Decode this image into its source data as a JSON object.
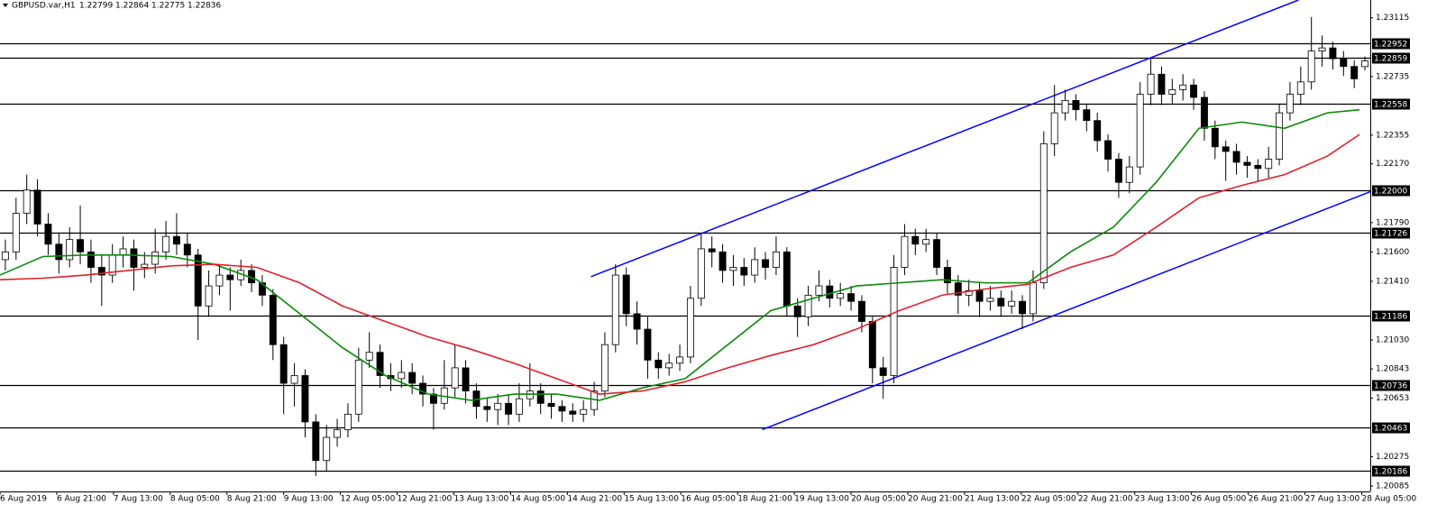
{
  "chart_data": {
    "type": "candlestick",
    "title": "GBPUSD.var,H1",
    "header_values": [
      1.22799,
      1.22864,
      1.22775,
      1.22836
    ],
    "xlim": [
      0,
      128
    ],
    "ylim": [
      1.2005,
      1.2323
    ],
    "xticks": [
      {
        "value": 0,
        "label": "6 Aug 2019"
      },
      {
        "value": 5.3,
        "label": "6 Aug 21:00"
      },
      {
        "value": 10.6,
        "label": "7 Aug 13:00"
      },
      {
        "value": 15.9,
        "label": "8 Aug 05:00"
      },
      {
        "value": 21.2,
        "label": "8 Aug 21:00"
      },
      {
        "value": 26.5,
        "label": "9 Aug 13:00"
      },
      {
        "value": 31.8,
        "label": "12 Aug 05:00"
      },
      {
        "value": 37.1,
        "label": "12 Aug 21:00"
      },
      {
        "value": 42.4,
        "label": "13 Aug 13:00"
      },
      {
        "value": 47.7,
        "label": "14 Aug 05:00"
      },
      {
        "value": 53.0,
        "label": "14 Aug 21:00"
      },
      {
        "value": 58.3,
        "label": "15 Aug 13:00"
      },
      {
        "value": 63.6,
        "label": "16 Aug 05:00"
      },
      {
        "value": 68.9,
        "label": "18 Aug 21:00"
      },
      {
        "value": 74.2,
        "label": "19 Aug 13:00"
      },
      {
        "value": 79.5,
        "label": "20 Aug 05:00"
      },
      {
        "value": 84.8,
        "label": "20 Aug 21:00"
      },
      {
        "value": 90.1,
        "label": "21 Aug 13:00"
      },
      {
        "value": 95.4,
        "label": "22 Aug 05:00"
      },
      {
        "value": 100.7,
        "label": "22 Aug 21:00"
      },
      {
        "value": 106.0,
        "label": "23 Aug 13:00"
      },
      {
        "value": 111.3,
        "label": "26 Aug 05:00"
      },
      {
        "value": 116.6,
        "label": "26 Aug 21:00"
      },
      {
        "value": 121.9,
        "label": "27 Aug 13:00"
      },
      {
        "value": 127.2,
        "label": "28 Aug 05:00"
      }
    ],
    "yticks": [
      1.23115,
      1.22735,
      1.22355,
      {
        "value": 1.2217,
        "label": "1.22170"
      },
      {
        "value": 1.2179,
        "label": "1.21790"
      },
      {
        "value": 1.216,
        "label": "1.21600"
      },
      {
        "value": 1.2141,
        "label": "1.21410"
      },
      {
        "value": 1.2103,
        "label": "1.21030"
      },
      1.20843,
      1.20653,
      1.20275,
      1.20085
    ],
    "levels": [
      1.22952,
      1.22859,
      1.22558,
      {
        "value": 1.22,
        "label": "1.22000"
      },
      1.21726,
      1.21186,
      1.20736,
      1.20463,
      1.20186
    ],
    "open": [
      1.2155,
      1.216,
      1.2185,
      1.22,
      1.2178,
      1.2165,
      1.2155,
      1.2168,
      1.216,
      1.215,
      1.2145,
      1.2158,
      1.2162,
      1.215,
      1.2152,
      1.216,
      1.217,
      1.2165,
      1.2158,
      1.2125,
      1.2138,
      1.2145,
      1.2142,
      1.2148,
      1.214,
      1.2132,
      1.21,
      1.2075,
      1.208,
      1.205,
      1.2025,
      1.204,
      1.2045,
      1.2055,
      1.209,
      1.2095,
      1.208,
      1.2078,
      1.2082,
      1.2075,
      1.2068,
      1.2062,
      1.2072,
      1.2085,
      1.207,
      1.206,
      1.2058,
      1.2062,
      1.2055,
      1.2065,
      1.207,
      1.2062,
      1.206,
      1.2057,
      1.2055,
      1.2058,
      1.207,
      1.21,
      1.2145,
      1.212,
      1.211,
      1.209,
      1.2085,
      1.2088,
      1.2092,
      1.213,
      1.2162,
      1.216,
      1.2148,
      1.215,
      1.2145,
      1.2155,
      1.215,
      1.216,
      1.2125,
      1.2118,
      1.2132,
      1.2138,
      1.213,
      1.2133,
      1.2128,
      1.2115,
      1.2085,
      1.208,
      1.215,
      1.217,
      1.2165,
      1.2168,
      1.215,
      1.214,
      1.2132,
      1.2135,
      1.2128,
      1.213,
      1.2125,
      1.2128,
      1.212,
      1.214,
      1.223,
      1.225,
      1.2258,
      1.2252,
      1.2245,
      1.2232,
      1.222,
      1.2205,
      1.2215,
      1.2262,
      1.2275,
      1.2262,
      1.2265,
      1.2268,
      1.226,
      1.224,
      1.2228,
      1.2225,
      1.2218,
      1.2216,
      1.2214,
      1.222,
      1.225,
      1.2262,
      1.227,
      1.229,
      1.2292,
      1.2285,
      1.228,
      1.22799
    ],
    "high": [
      1.2168,
      1.2195,
      1.221,
      1.2207,
      1.2185,
      1.2172,
      1.2176,
      1.219,
      1.2168,
      1.2158,
      1.2165,
      1.217,
      1.2168,
      1.216,
      1.2175,
      1.218,
      1.2185,
      1.2172,
      1.2162,
      1.2148,
      1.2152,
      1.215,
      1.2155,
      1.2152,
      1.2145,
      1.2136,
      1.2105,
      1.2088,
      1.2084,
      1.2055,
      1.2048,
      1.2052,
      1.2062,
      1.2098,
      1.2108,
      1.21,
      1.2088,
      1.209,
      1.2088,
      1.208,
      1.2072,
      1.209,
      1.21,
      1.209,
      1.2075,
      1.2066,
      1.2068,
      1.2068,
      1.2075,
      1.2088,
      1.2075,
      1.2068,
      1.2064,
      1.2062,
      1.2064,
      1.2076,
      1.2108,
      1.2152,
      1.215,
      1.2128,
      1.2118,
      1.2095,
      1.2094,
      1.21,
      1.2138,
      1.2172,
      1.217,
      1.2165,
      1.2158,
      1.2156,
      1.2163,
      1.216,
      1.217,
      1.2163,
      1.213,
      1.2138,
      1.2148,
      1.2142,
      1.214,
      1.2138,
      1.2132,
      1.2118,
      1.2092,
      1.2158,
      1.2178,
      1.2175,
      1.2175,
      1.2172,
      1.2155,
      1.2145,
      1.2142,
      1.214,
      1.2138,
      1.2135,
      1.2135,
      1.2132,
      1.2148,
      1.2238,
      1.2268,
      1.2265,
      1.2262,
      1.2256,
      1.225,
      1.2236,
      1.2224,
      1.2222,
      1.227,
      1.2285,
      1.228,
      1.2272,
      1.2275,
      1.2272,
      1.2264,
      1.2245,
      1.2232,
      1.223,
      1.2222,
      1.222,
      1.2228,
      1.2256,
      1.227,
      1.228,
      1.2312,
      1.23,
      1.2296,
      1.229,
      1.2284,
      1.22864
    ],
    "low": [
      1.2148,
      1.2155,
      1.2178,
      1.217,
      1.2158,
      1.2146,
      1.215,
      1.2152,
      1.214,
      1.2125,
      1.214,
      1.215,
      1.2135,
      1.2143,
      1.2146,
      1.2155,
      1.2158,
      1.215,
      1.2103,
      1.2118,
      1.2132,
      1.2122,
      1.2138,
      1.2134,
      1.2125,
      1.209,
      1.2055,
      1.206,
      1.204,
      1.2015,
      1.2018,
      1.2034,
      1.204,
      1.205,
      1.2085,
      1.2072,
      1.207,
      1.2072,
      1.2068,
      1.206,
      1.2045,
      1.2058,
      1.2066,
      1.2062,
      1.2052,
      1.205,
      1.2048,
      1.2048,
      1.205,
      1.206,
      1.2055,
      1.2052,
      1.205,
      1.205,
      1.205,
      1.2054,
      1.2066,
      1.2095,
      1.2112,
      1.21,
      1.2078,
      1.2078,
      1.208,
      1.2083,
      1.2088,
      1.2125,
      1.215,
      1.214,
      1.2138,
      1.2138,
      1.214,
      1.2142,
      1.2145,
      1.2118,
      1.2105,
      1.2112,
      1.2128,
      1.2124,
      1.2125,
      1.2122,
      1.2108,
      1.2075,
      1.2065,
      1.2075,
      1.2145,
      1.2158,
      1.216,
      1.2145,
      1.2133,
      1.212,
      1.2125,
      1.2118,
      1.2122,
      1.2118,
      1.212,
      1.211,
      1.2115,
      1.2136,
      1.2222,
      1.2245,
      1.2245,
      1.2238,
      1.2225,
      1.2212,
      1.2195,
      1.2198,
      1.221,
      1.2255,
      1.2255,
      1.2256,
      1.2258,
      1.2252,
      1.2232,
      1.222,
      1.2206,
      1.221,
      1.2208,
      1.2206,
      1.2208,
      1.2216,
      1.2245,
      1.2255,
      1.2265,
      1.228,
      1.2278,
      1.2274,
      1.2266,
      1.22775
    ],
    "close": [
      1.216,
      1.2185,
      1.22,
      1.2178,
      1.2165,
      1.2155,
      1.2168,
      1.216,
      1.215,
      1.2145,
      1.2158,
      1.2162,
      1.215,
      1.2152,
      1.216,
      1.217,
      1.2165,
      1.2158,
      1.2125,
      1.2138,
      1.2145,
      1.2142,
      1.2148,
      1.214,
      1.2132,
      1.21,
      1.2075,
      1.208,
      1.205,
      1.2025,
      1.204,
      1.2045,
      1.2055,
      1.209,
      1.2095,
      1.208,
      1.2078,
      1.2082,
      1.2075,
      1.2068,
      1.2062,
      1.2072,
      1.2085,
      1.207,
      1.206,
      1.2058,
      1.2062,
      1.2055,
      1.2065,
      1.207,
      1.2062,
      1.206,
      1.2057,
      1.2055,
      1.2058,
      1.207,
      1.21,
      1.2145,
      1.212,
      1.211,
      1.209,
      1.2085,
      1.2088,
      1.2092,
      1.213,
      1.2162,
      1.216,
      1.2148,
      1.215,
      1.2145,
      1.2155,
      1.215,
      1.216,
      1.2125,
      1.2118,
      1.2132,
      1.2138,
      1.213,
      1.2133,
      1.2128,
      1.2115,
      1.2085,
      1.208,
      1.215,
      1.217,
      1.2165,
      1.2168,
      1.215,
      1.214,
      1.2132,
      1.2135,
      1.2128,
      1.213,
      1.2125,
      1.2128,
      1.212,
      1.214,
      1.223,
      1.225,
      1.2258,
      1.2252,
      1.2245,
      1.2232,
      1.222,
      1.2205,
      1.2215,
      1.2262,
      1.2275,
      1.2262,
      1.2265,
      1.2268,
      1.226,
      1.224,
      1.2228,
      1.2225,
      1.2218,
      1.2216,
      1.2214,
      1.222,
      1.225,
      1.2262,
      1.227,
      1.229,
      1.2292,
      1.2285,
      1.228,
      1.2272,
      1.22836
    ],
    "candle_color": "#000000",
    "moving_averages": [
      {
        "color": "#0a8a0a",
        "x": [
          0,
          4,
          8,
          12,
          16,
          20,
          24,
          28,
          32,
          36,
          40,
          44,
          48,
          52,
          56,
          60,
          64,
          68,
          72,
          76,
          80,
          84,
          88,
          92,
          96,
          100,
          104,
          108,
          112,
          116,
          120,
          124,
          127
        ],
        "values": [
          1.2145,
          1.2157,
          1.2158,
          1.2158,
          1.2157,
          1.2152,
          1.2142,
          1.212,
          1.2098,
          1.208,
          1.2068,
          1.2064,
          1.2068,
          1.2068,
          1.2064,
          1.2072,
          1.2078,
          1.21,
          1.2122,
          1.213,
          1.2138,
          1.214,
          1.2142,
          1.214,
          1.214,
          1.216,
          1.2176,
          1.2205,
          1.224,
          1.2244,
          1.224,
          1.225,
          1.2252
        ]
      },
      {
        "color": "#e0202a",
        "x": [
          0,
          4,
          8,
          12,
          16,
          20,
          24,
          28,
          32,
          36,
          40,
          44,
          48,
          52,
          56,
          60,
          64,
          68,
          72,
          76,
          80,
          84,
          88,
          92,
          96,
          100,
          104,
          108,
          112,
          116,
          120,
          124,
          127
        ],
        "values": [
          1.2142,
          1.2143,
          1.2145,
          1.2148,
          1.2151,
          1.2152,
          1.215,
          1.214,
          1.2125,
          1.2115,
          1.2105,
          1.2097,
          1.2088,
          1.2078,
          1.2068,
          1.207,
          1.2076,
          1.2085,
          1.2093,
          1.21,
          1.211,
          1.2122,
          1.2132,
          1.2136,
          1.2139,
          1.215,
          1.2158,
          1.2176,
          1.2195,
          1.2203,
          1.221,
          1.2222,
          1.2236
        ]
      }
    ],
    "trendlines": [
      {
        "color": "#0000ff",
        "x": [
          55.2,
          121.3
        ],
        "values": [
          1.2144,
          1.2323
        ]
      },
      {
        "color": "#0000ff",
        "x": [
          71.2,
          128
        ],
        "values": [
          1.2045,
          1.2199
        ]
      }
    ]
  }
}
